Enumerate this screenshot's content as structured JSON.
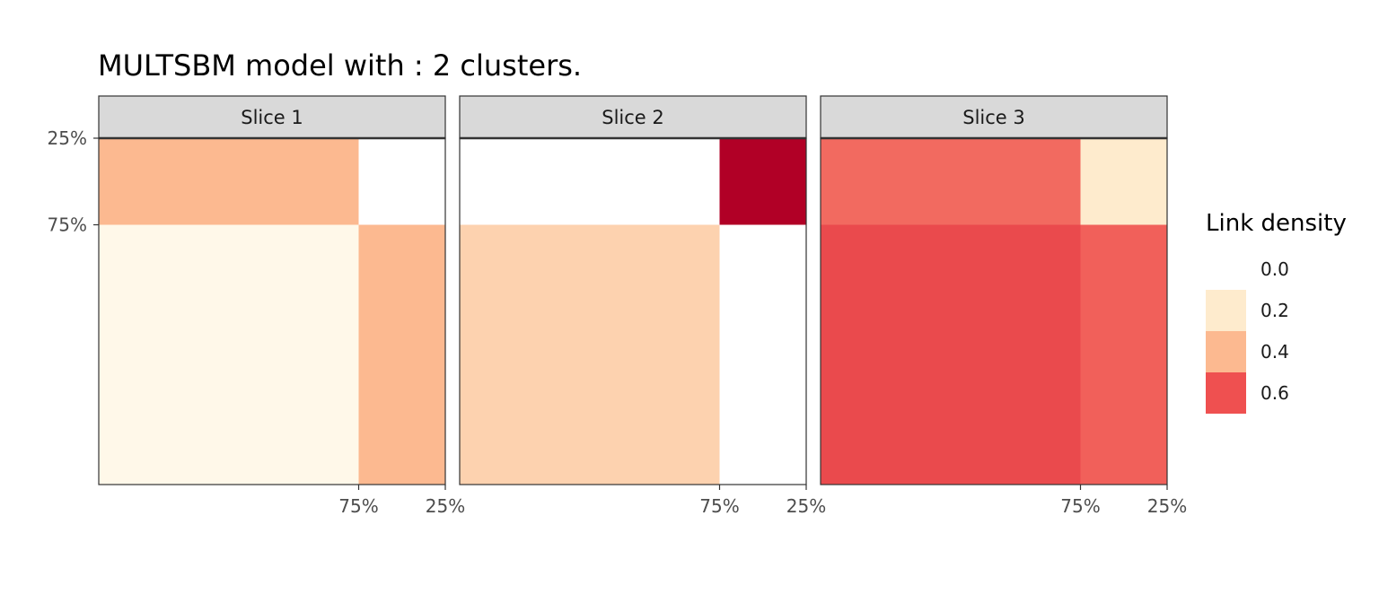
{
  "chart_data": {
    "type": "heatmap",
    "title": "MULTSBM model with : 2 clusters.",
    "row_proportions": [
      0.25,
      0.75
    ],
    "col_proportions": [
      0.75,
      0.25
    ],
    "y_tick_labels": [
      "25%",
      "75%"
    ],
    "x_tick_labels": [
      "75%",
      "25%"
    ],
    "panels": [
      {
        "label": "Slice  1",
        "values": [
          [
            0.4,
            0.0
          ],
          [
            0.04,
            0.4
          ]
        ]
      },
      {
        "label": "Slice  2",
        "values": [
          [
            0.0,
            0.85
          ],
          [
            0.3,
            0.0
          ]
        ]
      },
      {
        "label": "Slice  3",
        "values": [
          [
            0.55,
            0.2
          ],
          [
            0.62,
            0.57
          ]
        ]
      }
    ],
    "legend": {
      "title": "Link density",
      "position": "right",
      "breaks": [
        "0.0",
        "0.2",
        "0.4",
        "0.6"
      ],
      "colors": [
        "#ffffff",
        "#feebcd",
        "#fcb990",
        "#ef5050"
      ]
    },
    "color_scale": {
      "domain": [
        0.0,
        0.2,
        0.4,
        0.6,
        0.85
      ],
      "colors": [
        "#fffbf0",
        "#feebcd",
        "#fcb990",
        "#ef5050",
        "#b10026"
      ],
      "zero_color": "#ffffff"
    },
    "grid": false
  }
}
